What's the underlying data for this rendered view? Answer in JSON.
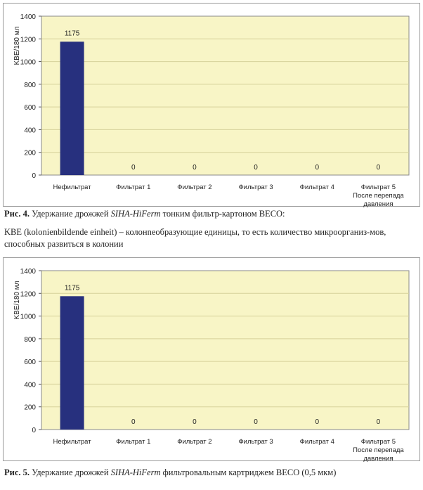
{
  "chart_data": [
    {
      "type": "bar",
      "ylabel": "KBE/180 мл",
      "ylim": [
        0,
        1400
      ],
      "yticks": [
        "0",
        "200",
        "400",
        "600",
        "800",
        "1000",
        "1200",
        "1400"
      ],
      "categories": [
        "Нефильтрат",
        "Фильтрат 1",
        "Фильтрат 2",
        "Фильтрат 3",
        "Фильтрат 4",
        "Фильтрат 5 После перепада давления"
      ],
      "category_lines": [
        [
          "Нефильтрат"
        ],
        [
          "Фильтрат 1"
        ],
        [
          "Фильтрат 2"
        ],
        [
          "Фильтрат 3"
        ],
        [
          "Фильтрат 4"
        ],
        [
          "Фильтрат 5",
          "После перепада",
          "давления"
        ]
      ],
      "values": [
        1175,
        0,
        0,
        0,
        0,
        0
      ],
      "data_labels": [
        "1175",
        "0",
        "0",
        "0",
        "0",
        "0"
      ],
      "grid": true,
      "colors": {
        "bar": "#27307e",
        "plot_bg": "#f8f5c6",
        "grid": "#d6d19a"
      }
    },
    {
      "type": "bar",
      "ylabel": "KBE/180 мл",
      "ylim": [
        0,
        1400
      ],
      "yticks": [
        "0",
        "200",
        "400",
        "600",
        "800",
        "1000",
        "1200",
        "1400"
      ],
      "categories": [
        "Нефильтрат",
        "Фильтрат 1",
        "Фильтрат 2",
        "Фильтрат 3",
        "Фильтрат 4",
        "Фильтрат 5 После перепада давления"
      ],
      "category_lines": [
        [
          "Нефильтрат"
        ],
        [
          "Фильтрат 1"
        ],
        [
          "Фильтрат 2"
        ],
        [
          "Фильтрат 3"
        ],
        [
          "Фильтрат 4"
        ],
        [
          "Фильтрат 5",
          "После перепада",
          "давления"
        ]
      ],
      "values": [
        1175,
        0,
        0,
        0,
        0,
        0
      ],
      "data_labels": [
        "1175",
        "0",
        "0",
        "0",
        "0",
        "0"
      ],
      "grid": true,
      "colors": {
        "bar": "#27307e",
        "plot_bg": "#f8f5c6",
        "grid": "#d6d19a"
      }
    }
  ],
  "captions": {
    "fig4": {
      "number": "Рис. 4.",
      "text_before": " Удержание дрожжей ",
      "brand": "SIHA-HiFerm",
      "text_after": " тонким фильтр-картоном BECO:",
      "note": "KBE (kolonienbildende einheit) – колонneобразующие единицы, то есть количество микроорганиз-мов, способных развиться в колонии"
    },
    "fig5": {
      "number": "Рис. 5.",
      "text_before": " Удержание дрожжей ",
      "brand": "SIHA-HiFerm",
      "text_after": " фильтровальным картриджем BECO (0,5 мкм)"
    }
  }
}
